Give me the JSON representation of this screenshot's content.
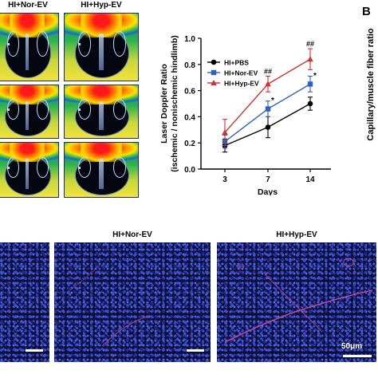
{
  "panel_b_letter": "B",
  "panel_b_ylabel": "Capillary/muscle fiber ratio",
  "doppler": {
    "col_labels": [
      "HI+Nor-EV",
      "HI+Hyp-EV"
    ]
  },
  "histology": {
    "labels": [
      "",
      "HI+Nor-EV",
      "HI+Hyp-EV"
    ],
    "scale_label": "50μm"
  },
  "colors": {
    "pbs": "#000000",
    "nor": "#2f5fbf",
    "hyp": "#d03030"
  },
  "chart_data": {
    "type": "line",
    "x": [
      3,
      7,
      14
    ],
    "xlabel": "Days",
    "ylabel_lines": [
      "Laser Doppler Ratio",
      "(ischemic / nonischemic hindlimb)"
    ],
    "ylim": [
      0.0,
      1.0
    ],
    "yticks": [
      "0.0",
      "0.2",
      "0.4",
      "0.6",
      "0.8",
      "1.0"
    ],
    "xticks": [
      "3",
      "7",
      "14"
    ],
    "legend_position": "top-left",
    "series": [
      {
        "name": "HI+PBS",
        "values": [
          0.18,
          0.32,
          0.5
        ],
        "err": [
          0.05,
          0.08,
          0.05
        ],
        "marker": "circle",
        "color": "#000000"
      },
      {
        "name": "HI+Nor-EV",
        "values": [
          0.21,
          0.46,
          0.65
        ],
        "err": [
          0.05,
          0.06,
          0.06
        ],
        "marker": "square",
        "color": "#2f5fbf"
      },
      {
        "name": "HI+Hyp-EV",
        "values": [
          0.28,
          0.65,
          0.84
        ],
        "err": [
          0.1,
          0.06,
          0.08
        ],
        "marker": "triangle",
        "color": "#d03030"
      }
    ],
    "annotations": [
      {
        "text": "##",
        "x": 7,
        "y": 0.73
      },
      {
        "text": "*",
        "x": 7,
        "y": 0.53
      },
      {
        "text": "##",
        "x": 14,
        "y": 0.94
      },
      {
        "text": "*",
        "x": 14,
        "y": 0.72
      }
    ]
  }
}
